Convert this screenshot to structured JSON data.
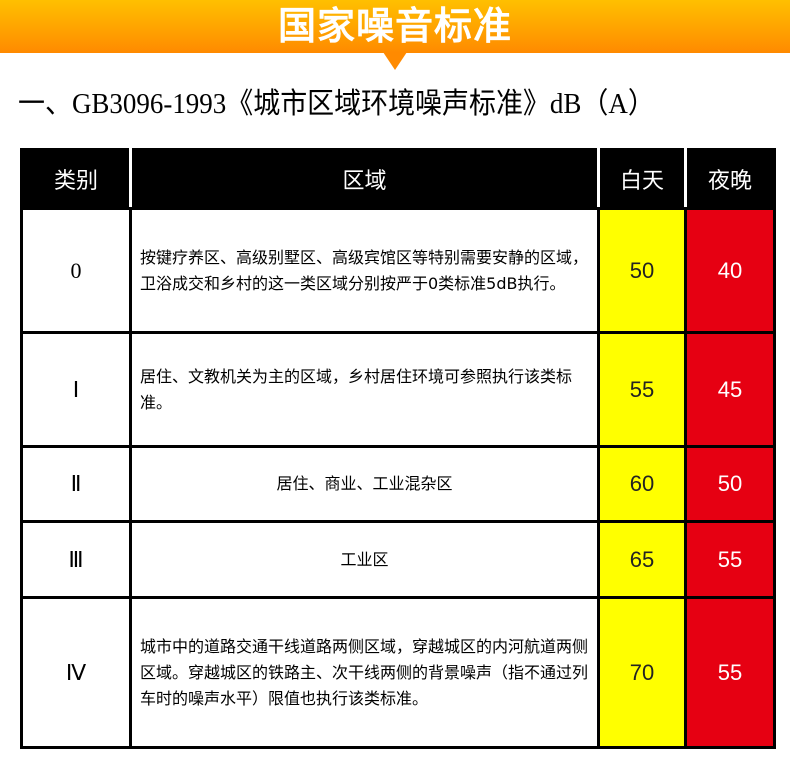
{
  "banner": {
    "title": "国家噪音标准"
  },
  "subtitle": "一、GB3096-1993《城市区域环境噪声标准》dB（A）",
  "table": {
    "headers": [
      "类别",
      "区域",
      "白天",
      "夜晚"
    ],
    "rows": [
      {
        "category": "0",
        "area": "按键疗养区、高级别墅区、高级宾馆区等特别需要安静的区域，卫浴成交和乡村的这一类区域分别按严于0类标准5dB执行。",
        "day": "50",
        "night": "40"
      },
      {
        "category": "Ⅰ",
        "area": "居住、文教机关为主的区域，乡村居住环境可参照执行该类标准。",
        "day": "55",
        "night": "45"
      },
      {
        "category": "Ⅱ",
        "area": "居住、商业、工业混杂区",
        "day": "60",
        "night": "50"
      },
      {
        "category": "Ⅲ",
        "area": "工业区",
        "day": "65",
        "night": "55"
      },
      {
        "category": "Ⅳ",
        "area": "城市中的道路交通干线道路两侧区域，穿越城区的内河航道两侧区域。穿越城区的铁路主、次干线两侧的背景噪声（指不通过列车时的噪声水平）限值也执行该类标准。",
        "day": "70",
        "night": "55"
      }
    ]
  },
  "colors": {
    "banner": "#ff9a00",
    "day": "#ffff00",
    "night": "#e60012"
  }
}
